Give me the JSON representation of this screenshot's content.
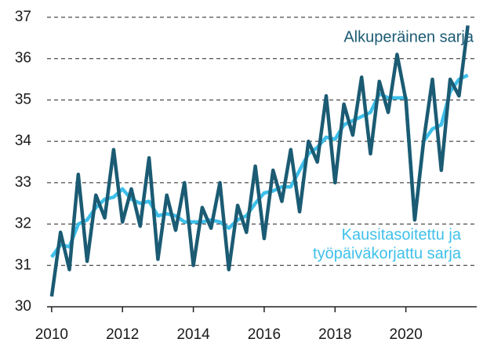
{
  "chart_data": {
    "type": "line",
    "x": [
      2010,
      2010.25,
      2010.5,
      2010.75,
      2011,
      2011.25,
      2011.5,
      2011.75,
      2012,
      2012.25,
      2012.5,
      2012.75,
      2013,
      2013.25,
      2013.5,
      2013.75,
      2014,
      2014.25,
      2014.5,
      2014.75,
      2015,
      2015.25,
      2015.5,
      2015.75,
      2016,
      2016.25,
      2016.5,
      2016.75,
      2017,
      2017.25,
      2017.5,
      2017.75,
      2018,
      2018.25,
      2018.5,
      2018.75,
      2019,
      2019.25,
      2019.5,
      2019.75,
      2020,
      2020.25,
      2020.5,
      2020.75,
      2021,
      2021.25,
      2021.5,
      2021.75
    ],
    "series": [
      {
        "name": "Alkuperäinen sarja",
        "color": "#1b5b73",
        "values": [
          30.25,
          31.8,
          30.9,
          33.2,
          31.1,
          32.7,
          32.15,
          33.8,
          32.05,
          32.85,
          31.95,
          33.6,
          31.15,
          32.7,
          31.85,
          33.0,
          31.0,
          32.4,
          31.9,
          33.0,
          30.9,
          32.45,
          31.8,
          33.4,
          31.65,
          33.3,
          32.55,
          33.8,
          32.3,
          34.0,
          33.5,
          35.1,
          33.0,
          34.9,
          34.15,
          35.55,
          33.7,
          35.45,
          34.7,
          36.1,
          35.0,
          32.1,
          34.0,
          35.5,
          33.3,
          35.5,
          35.1,
          36.8
        ]
      },
      {
        "name": "Kausitasoitettu ja työpäiväkorjattu sarja",
        "color": "#3ec0ea",
        "values": [
          31.2,
          31.5,
          31.45,
          32.0,
          32.1,
          32.4,
          32.6,
          32.65,
          32.85,
          32.6,
          32.5,
          32.55,
          32.2,
          32.25,
          32.2,
          32.05,
          32.05,
          32.05,
          32.1,
          32.05,
          31.9,
          32.1,
          32.2,
          32.5,
          32.75,
          32.8,
          32.9,
          32.9,
          33.3,
          33.7,
          33.85,
          34.1,
          34.05,
          34.4,
          34.5,
          34.6,
          34.7,
          35.15,
          35.05,
          35.05,
          35.05,
          32.1,
          34.0,
          34.3,
          34.4,
          35.2,
          35.5,
          35.6
        ]
      }
    ],
    "annotations": [
      {
        "lines": [
          "Alkuperäinen sarja"
        ],
        "color": "#1b5b73"
      },
      {
        "lines": [
          "Kausitasoitettu ja",
          "työpäiväkorjattu sarja"
        ],
        "color": "#3ec0ea"
      }
    ],
    "xlim": [
      2009.87,
      2022.0
    ],
    "xticks": [
      2010,
      2012,
      2014,
      2016,
      2018,
      2020
    ],
    "ylim": [
      30,
      37
    ],
    "yticks": [
      30,
      31,
      32,
      33,
      34,
      35,
      36,
      37
    ],
    "grid": true
  }
}
